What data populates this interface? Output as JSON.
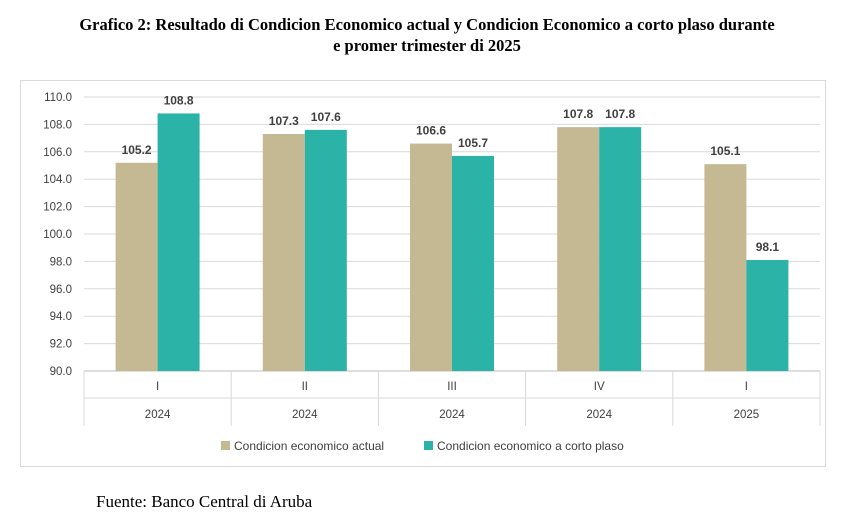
{
  "title_line1": "Grafico 2: Resultado di Condicion  Economico  actual y Condicion  Economico  a corto plaso durante",
  "title_line2": "e promer trimester di 2025",
  "source": "Fuente: Banco Central di Aruba",
  "colors": {
    "series1": "#c5b994",
    "series2": "#2bb3a8"
  },
  "chart_data": {
    "type": "bar",
    "categories": [
      {
        "quarter": "I",
        "year": "2024"
      },
      {
        "quarter": "II",
        "year": "2024"
      },
      {
        "quarter": "III",
        "year": "2024"
      },
      {
        "quarter": "IV",
        "year": "2024"
      },
      {
        "quarter": "I",
        "year": "2025"
      }
    ],
    "series": [
      {
        "name": "Condicion economico actual",
        "values": [
          105.2,
          107.3,
          106.6,
          107.8,
          105.1
        ],
        "labels": [
          "105.2",
          "107.3",
          "106.6",
          "107.8",
          "105.1"
        ]
      },
      {
        "name": "Condicion economico a corto plaso",
        "values": [
          108.8,
          107.6,
          105.7,
          107.8,
          98.1
        ],
        "labels": [
          "108.8",
          "107.6",
          "105.7",
          "107.8",
          "98.1"
        ]
      }
    ],
    "ylim": [
      90.0,
      110.0
    ],
    "yticks": [
      "90.0",
      "92.0",
      "94.0",
      "96.0",
      "98.0",
      "100.0",
      "102.0",
      "104.0",
      "106.0",
      "108.0",
      "110.0"
    ],
    "grid": true,
    "legend": "bottom"
  }
}
